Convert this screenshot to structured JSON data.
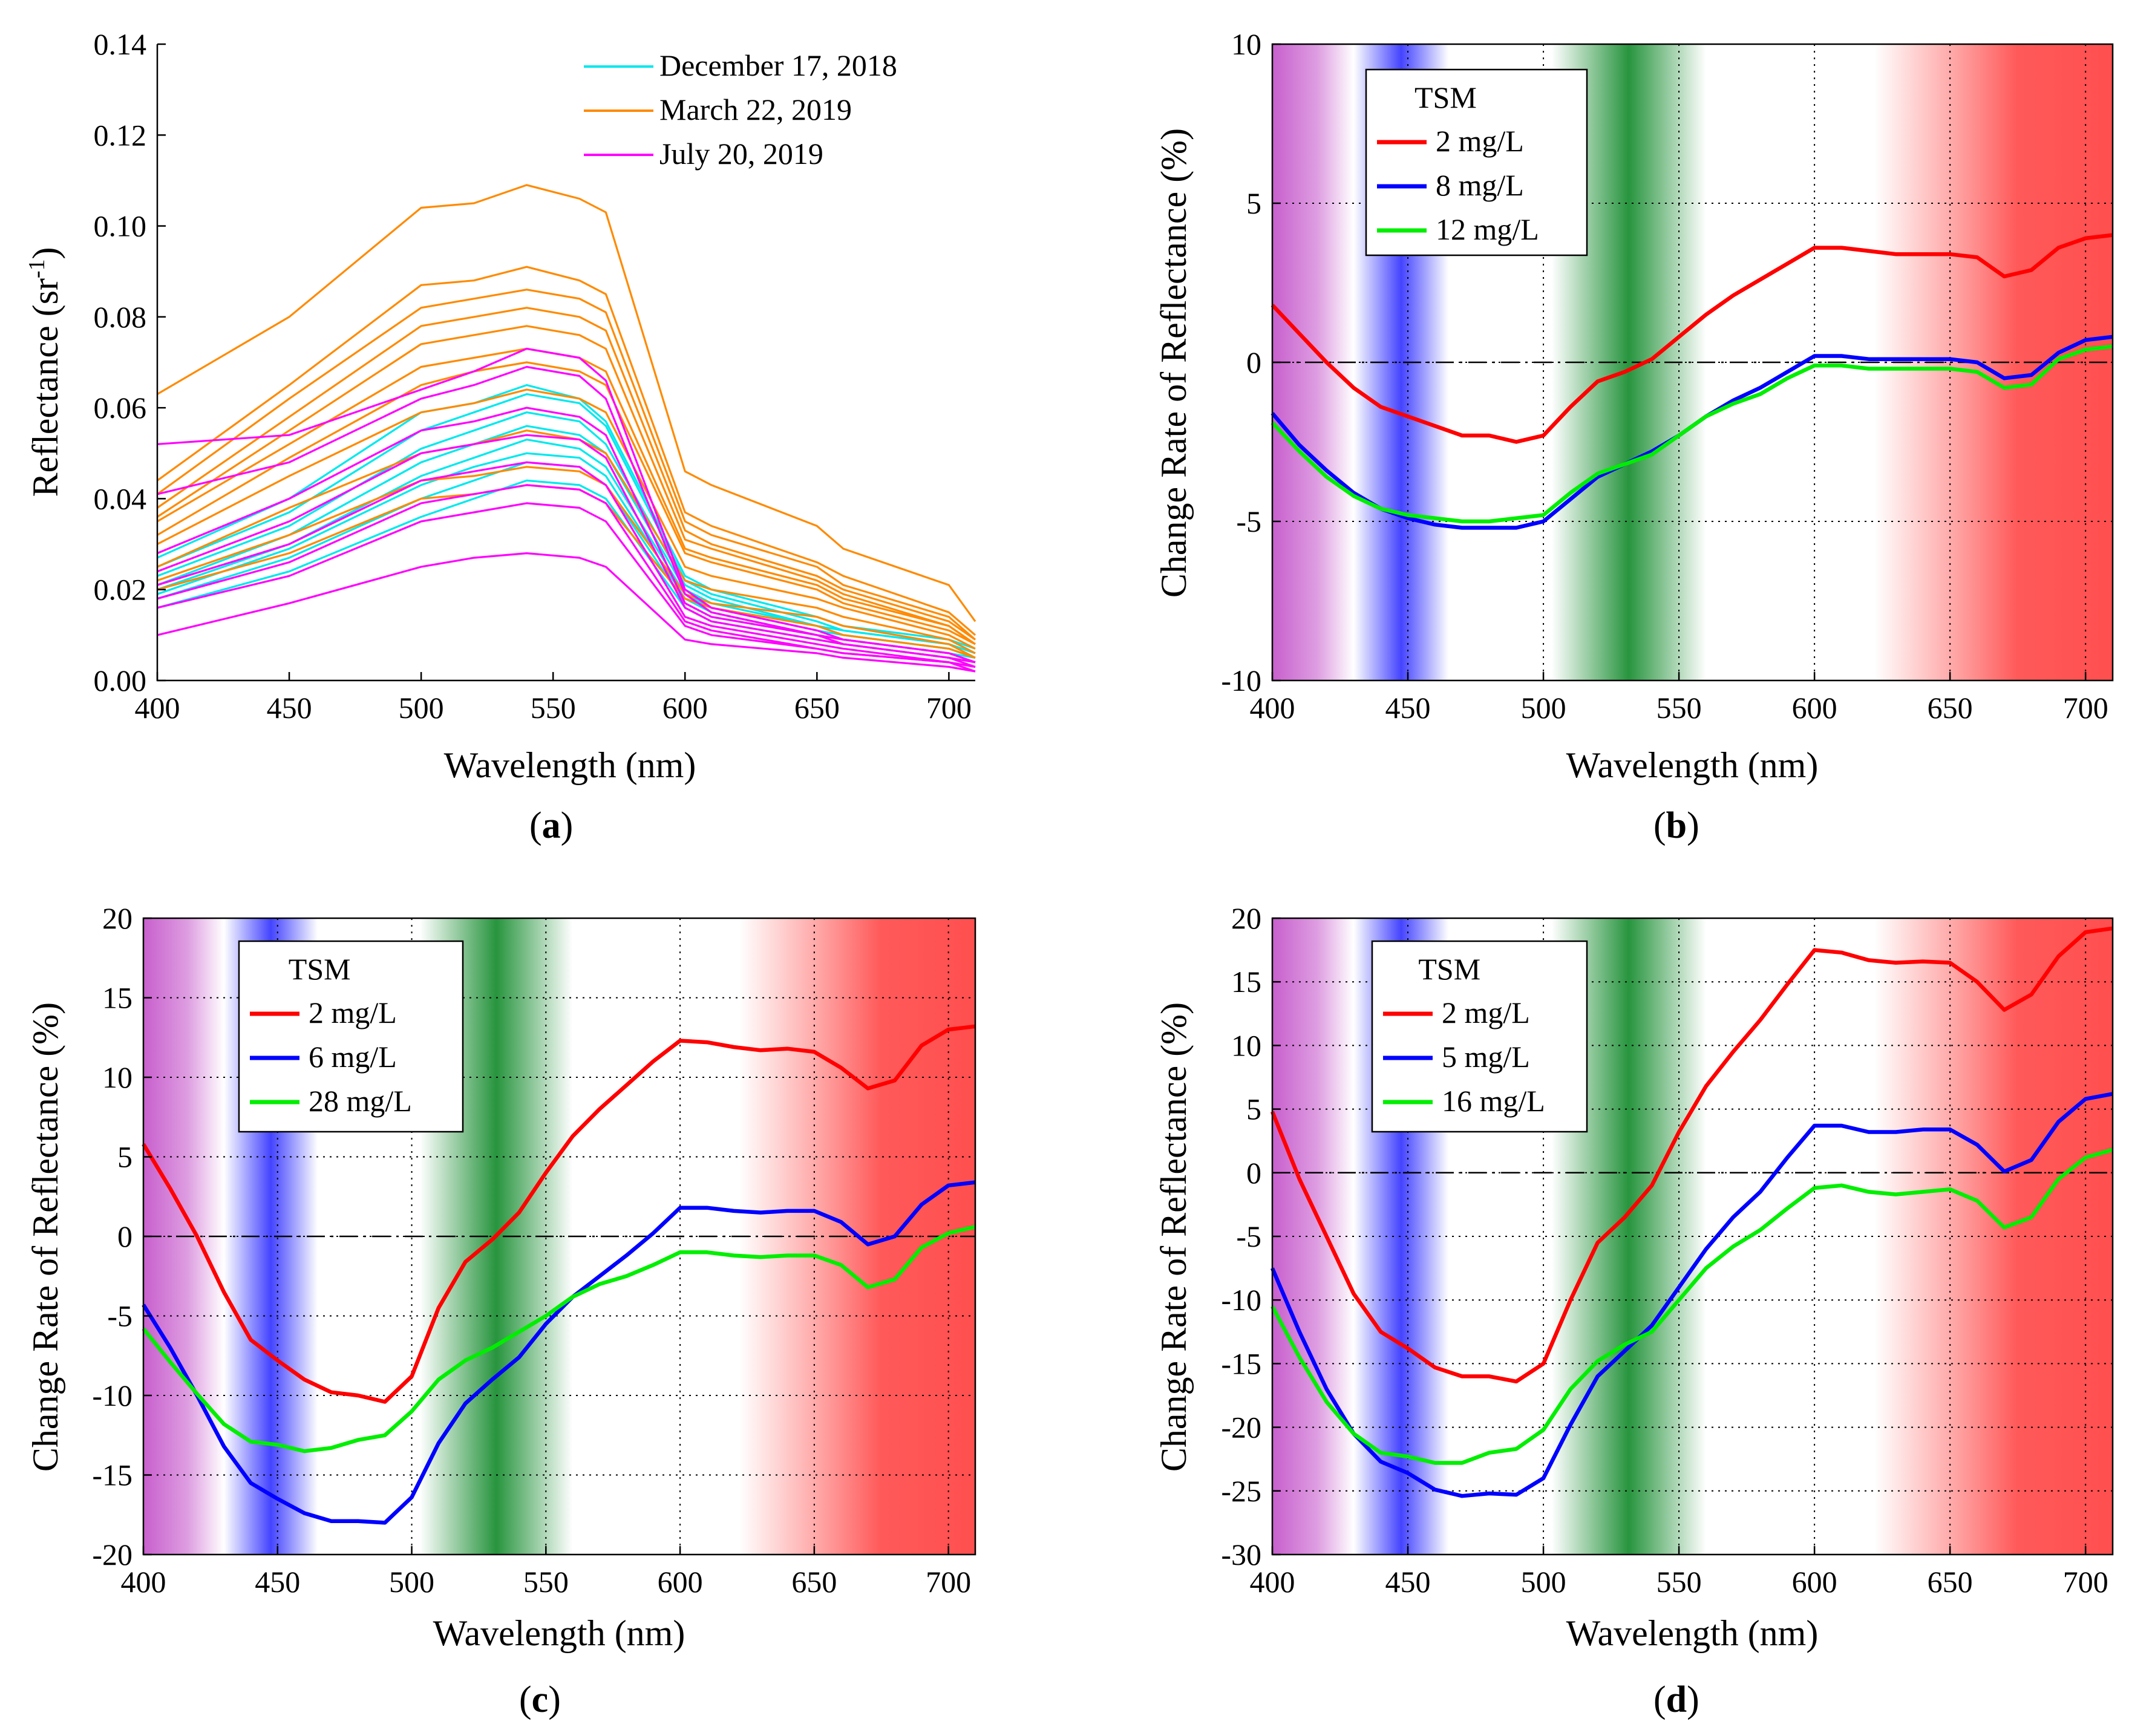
{
  "chart_data": [
    {
      "id": "a",
      "type": "line",
      "panel_label": "a",
      "xlabel": "Wavelength (nm)",
      "ylabel": "Reflectance (sr",
      "ylabel_sup": "-1",
      "ylabel_tail": ")",
      "xlim": [
        400,
        710
      ],
      "ylim": [
        0,
        0.14
      ],
      "xticks": [
        400,
        450,
        500,
        550,
        600,
        650,
        700
      ],
      "yticks": [
        0.0,
        0.02,
        0.04,
        0.06,
        0.08,
        0.1,
        0.12,
        0.14
      ],
      "ytick_labels": [
        "0.00",
        "0.02",
        "0.04",
        "0.06",
        "0.08",
        "0.10",
        "0.12",
        "0.14"
      ],
      "grid": false,
      "x": [
        400,
        450,
        500,
        520,
        540,
        560,
        570,
        600,
        610,
        650,
        660,
        700,
        710
      ],
      "legend": [
        {
          "label": "December 17, 2018",
          "color": "#00e8ee"
        },
        {
          "label": "March 22, 2019",
          "color": "#ff8a00"
        },
        {
          "label": "July 20, 2019",
          "color": "#ff00ff"
        }
      ],
      "groups": [
        {
          "name": "December 17, 2018",
          "color": "#00e8ee",
          "curves": [
            [
              0.016,
              0.024,
              0.036,
              0.04,
              0.044,
              0.043,
              0.04,
              0.016,
              0.013,
              0.009,
              0.008,
              0.005,
              0.004
            ],
            [
              0.018,
              0.027,
              0.04,
              0.044,
              0.048,
              0.047,
              0.043,
              0.017,
              0.014,
              0.01,
              0.009,
              0.006,
              0.004
            ],
            [
              0.019,
              0.029,
              0.043,
              0.047,
              0.05,
              0.049,
              0.045,
              0.018,
              0.015,
              0.01,
              0.009,
              0.006,
              0.005
            ],
            [
              0.02,
              0.03,
              0.045,
              0.049,
              0.053,
              0.051,
              0.047,
              0.019,
              0.016,
              0.011,
              0.01,
              0.007,
              0.005
            ],
            [
              0.021,
              0.032,
              0.048,
              0.052,
              0.056,
              0.054,
              0.05,
              0.02,
              0.017,
              0.012,
              0.01,
              0.007,
              0.005
            ],
            [
              0.023,
              0.034,
              0.051,
              0.055,
              0.059,
              0.057,
              0.052,
              0.021,
              0.018,
              0.012,
              0.011,
              0.008,
              0.006
            ],
            [
              0.025,
              0.037,
              0.055,
              0.059,
              0.063,
              0.061,
              0.056,
              0.022,
              0.019,
              0.013,
              0.011,
              0.008,
              0.006
            ],
            [
              0.027,
              0.04,
              0.059,
              0.061,
              0.065,
              0.062,
              0.057,
              0.023,
              0.02,
              0.014,
              0.012,
              0.009,
              0.007
            ]
          ]
        },
        {
          "name": "March 22, 2019",
          "color": "#ff8a00",
          "curves": [
            [
              0.063,
              0.08,
              0.104,
              0.105,
              0.109,
              0.106,
              0.103,
              0.046,
              0.043,
              0.034,
              0.029,
              0.021,
              0.013
            ],
            [
              0.044,
              0.065,
              0.087,
              0.088,
              0.091,
              0.088,
              0.085,
              0.037,
              0.034,
              0.026,
              0.023,
              0.015,
              0.01
            ],
            [
              0.041,
              0.062,
              0.082,
              0.084,
              0.086,
              0.084,
              0.081,
              0.035,
              0.032,
              0.025,
              0.021,
              0.014,
              0.009
            ],
            [
              0.038,
              0.058,
              0.078,
              0.08,
              0.082,
              0.08,
              0.077,
              0.033,
              0.03,
              0.023,
              0.02,
              0.013,
              0.009
            ],
            [
              0.036,
              0.055,
              0.074,
              0.076,
              0.078,
              0.076,
              0.073,
              0.031,
              0.029,
              0.022,
              0.019,
              0.012,
              0.008
            ],
            [
              0.035,
              0.052,
              0.069,
              0.071,
              0.073,
              0.071,
              0.068,
              0.029,
              0.027,
              0.021,
              0.018,
              0.012,
              0.008
            ],
            [
              0.032,
              0.049,
              0.065,
              0.068,
              0.07,
              0.068,
              0.065,
              0.028,
              0.026,
              0.02,
              0.017,
              0.011,
              0.008
            ],
            [
              0.03,
              0.045,
              0.059,
              0.061,
              0.064,
              0.062,
              0.059,
              0.025,
              0.023,
              0.018,
              0.016,
              0.01,
              0.007
            ],
            [
              0.025,
              0.038,
              0.05,
              0.052,
              0.055,
              0.053,
              0.05,
              0.022,
              0.02,
              0.016,
              0.014,
              0.009,
              0.006
            ],
            [
              0.022,
              0.032,
              0.044,
              0.045,
              0.047,
              0.046,
              0.043,
              0.019,
              0.017,
              0.014,
              0.012,
              0.008,
              0.005
            ],
            [
              0.02,
              0.028,
              0.04,
              0.041,
              0.043,
              0.042,
              0.039,
              0.018,
              0.016,
              0.012,
              0.01,
              0.007,
              0.005
            ]
          ]
        },
        {
          "name": "July 20, 2019",
          "color": "#ff00ff",
          "curves": [
            [
              0.052,
              0.054,
              0.064,
              0.068,
              0.073,
              0.071,
              0.066,
              0.02,
              0.016,
              0.011,
              0.009,
              0.006,
              0.004
            ],
            [
              0.041,
              0.048,
              0.062,
              0.065,
              0.069,
              0.067,
              0.062,
              0.019,
              0.015,
              0.01,
              0.009,
              0.006,
              0.004
            ],
            [
              0.028,
              0.04,
              0.055,
              0.057,
              0.06,
              0.058,
              0.054,
              0.017,
              0.014,
              0.01,
              0.008,
              0.005,
              0.004
            ],
            [
              0.024,
              0.035,
              0.05,
              0.052,
              0.054,
              0.053,
              0.049,
              0.016,
              0.013,
              0.009,
              0.008,
              0.005,
              0.003
            ],
            [
              0.021,
              0.03,
              0.044,
              0.046,
              0.048,
              0.047,
              0.043,
              0.014,
              0.012,
              0.008,
              0.007,
              0.004,
              0.003
            ],
            [
              0.018,
              0.026,
              0.039,
              0.041,
              0.043,
              0.042,
              0.039,
              0.013,
              0.011,
              0.007,
              0.006,
              0.004,
              0.003
            ],
            [
              0.016,
              0.023,
              0.035,
              0.037,
              0.039,
              0.038,
              0.035,
              0.012,
              0.01,
              0.007,
              0.006,
              0.004,
              0.002
            ],
            [
              0.01,
              0.017,
              0.025,
              0.027,
              0.028,
              0.027,
              0.025,
              0.009,
              0.008,
              0.006,
              0.005,
              0.003,
              0.002
            ]
          ]
        }
      ]
    },
    {
      "id": "b",
      "type": "line",
      "panel_label": "b",
      "xlabel": "Wavelength (nm)",
      "ylabel": "Change Rate of Reflectance (%)",
      "xlim": [
        400,
        710
      ],
      "ylim": [
        -10,
        10
      ],
      "xticks": [
        400,
        450,
        500,
        550,
        600,
        650,
        700
      ],
      "yticks": [
        -10,
        -5,
        0,
        5,
        10
      ],
      "grid": true,
      "zero_line": true,
      "legend_title": "TSM",
      "x": [
        400,
        410,
        420,
        430,
        440,
        450,
        460,
        470,
        480,
        490,
        500,
        510,
        520,
        530,
        540,
        550,
        560,
        570,
        580,
        590,
        600,
        610,
        620,
        630,
        640,
        650,
        660,
        670,
        680,
        690,
        700,
        710
      ],
      "series": [
        {
          "name": "2 mg/L",
          "color": "#ff0000",
          "values": [
            1.8,
            0.9,
            0.0,
            -0.8,
            -1.4,
            -1.7,
            -2.0,
            -2.3,
            -2.3,
            -2.5,
            -2.3,
            -1.4,
            -0.6,
            -0.3,
            0.1,
            0.8,
            1.5,
            2.1,
            2.6,
            3.1,
            3.6,
            3.6,
            3.5,
            3.4,
            3.4,
            3.4,
            3.3,
            2.7,
            2.9,
            3.6,
            3.9,
            4.0
          ]
        },
        {
          "name": "8 mg/L",
          "color": "#0000ff",
          "values": [
            -1.6,
            -2.6,
            -3.4,
            -4.1,
            -4.6,
            -4.9,
            -5.1,
            -5.2,
            -5.2,
            -5.2,
            -5.0,
            -4.3,
            -3.6,
            -3.2,
            -2.8,
            -2.3,
            -1.7,
            -1.2,
            -0.8,
            -0.3,
            0.2,
            0.2,
            0.1,
            0.1,
            0.1,
            0.1,
            0.0,
            -0.5,
            -0.4,
            0.3,
            0.7,
            0.8
          ]
        },
        {
          "name": "12 mg/L",
          "color": "#00ee00",
          "values": [
            -1.9,
            -2.8,
            -3.6,
            -4.2,
            -4.6,
            -4.8,
            -4.9,
            -5.0,
            -5.0,
            -4.9,
            -4.8,
            -4.1,
            -3.5,
            -3.2,
            -2.9,
            -2.3,
            -1.7,
            -1.3,
            -1.0,
            -0.5,
            -0.1,
            -0.1,
            -0.2,
            -0.2,
            -0.2,
            -0.2,
            -0.3,
            -0.8,
            -0.7,
            0.1,
            0.4,
            0.5
          ]
        }
      ]
    },
    {
      "id": "c",
      "type": "line",
      "panel_label": "c",
      "xlabel": "Wavelength (nm)",
      "ylabel": "Change Rate of Reflectance (%)",
      "xlim": [
        400,
        710
      ],
      "ylim": [
        -20,
        20
      ],
      "xticks": [
        400,
        450,
        500,
        550,
        600,
        650,
        700
      ],
      "yticks": [
        -20,
        -15,
        -10,
        -5,
        0,
        5,
        10,
        15,
        20
      ],
      "grid": true,
      "zero_line": true,
      "legend_title": "TSM",
      "x": [
        400,
        410,
        420,
        430,
        440,
        450,
        460,
        470,
        480,
        490,
        500,
        510,
        520,
        530,
        540,
        550,
        560,
        570,
        580,
        590,
        600,
        610,
        620,
        630,
        640,
        650,
        660,
        670,
        680,
        690,
        700,
        710
      ],
      "series": [
        {
          "name": "2 mg/L",
          "color": "#ff0000",
          "values": [
            5.8,
            3.0,
            0.0,
            -3.5,
            -6.5,
            -7.8,
            -9.0,
            -9.8,
            -10.0,
            -10.4,
            -8.8,
            -4.5,
            -1.6,
            -0.2,
            1.5,
            4.0,
            6.3,
            8.0,
            9.5,
            11.0,
            12.3,
            12.2,
            11.9,
            11.7,
            11.8,
            11.6,
            10.6,
            9.3,
            9.8,
            12.0,
            13.0,
            13.2
          ]
        },
        {
          "name": "6 mg/L",
          "color": "#0000ff",
          "values": [
            -4.3,
            -7.0,
            -10.0,
            -13.2,
            -15.5,
            -16.5,
            -17.4,
            -17.9,
            -17.9,
            -18.0,
            -16.4,
            -13.0,
            -10.5,
            -9.0,
            -7.6,
            -5.5,
            -3.8,
            -2.5,
            -1.2,
            0.2,
            1.8,
            1.8,
            1.6,
            1.5,
            1.6,
            1.6,
            0.9,
            -0.5,
            0.0,
            2.0,
            3.2,
            3.4
          ]
        },
        {
          "name": "28 mg/L",
          "color": "#00ee00",
          "values": [
            -5.8,
            -7.9,
            -9.9,
            -11.8,
            -12.9,
            -13.1,
            -13.5,
            -13.3,
            -12.8,
            -12.5,
            -11.0,
            -9.0,
            -7.8,
            -7.0,
            -6.0,
            -5.0,
            -3.8,
            -3.0,
            -2.5,
            -1.8,
            -1.0,
            -1.0,
            -1.2,
            -1.3,
            -1.2,
            -1.2,
            -1.8,
            -3.2,
            -2.7,
            -0.7,
            0.2,
            0.6
          ]
        }
      ]
    },
    {
      "id": "d",
      "type": "line",
      "panel_label": "d",
      "xlabel": "Wavelength (nm)",
      "ylabel": "Change Rate of Reflectance (%)",
      "xlim": [
        400,
        710
      ],
      "ylim": [
        -30,
        20
      ],
      "xticks": [
        400,
        450,
        500,
        550,
        600,
        650,
        700
      ],
      "yticks": [
        -30,
        -25,
        -20,
        -15,
        -10,
        -5,
        0,
        5,
        10,
        15,
        20
      ],
      "grid": true,
      "zero_line": true,
      "legend_title": "TSM",
      "x": [
        400,
        410,
        420,
        430,
        440,
        450,
        460,
        470,
        480,
        490,
        500,
        510,
        520,
        530,
        540,
        550,
        560,
        570,
        580,
        590,
        600,
        610,
        620,
        630,
        640,
        650,
        660,
        670,
        680,
        690,
        700,
        710
      ],
      "series": [
        {
          "name": "2 mg/L",
          "color": "#ff0000",
          "values": [
            4.8,
            -0.5,
            -5.0,
            -9.5,
            -12.5,
            -13.8,
            -15.3,
            -16.0,
            -16.0,
            -16.4,
            -15.0,
            -10.0,
            -5.5,
            -3.5,
            -1.0,
            3.2,
            6.8,
            9.5,
            12.0,
            14.8,
            17.5,
            17.3,
            16.7,
            16.5,
            16.6,
            16.5,
            15.0,
            12.8,
            14.0,
            17.0,
            18.9,
            19.2
          ]
        },
        {
          "name": "5 mg/L",
          "color": "#0000ff",
          "values": [
            -7.5,
            -12.5,
            -17.0,
            -20.5,
            -22.7,
            -23.6,
            -24.9,
            -25.4,
            -25.2,
            -25.3,
            -24.0,
            -19.8,
            -16.0,
            -14.0,
            -12.0,
            -9.0,
            -6.0,
            -3.5,
            -1.5,
            1.2,
            3.7,
            3.7,
            3.2,
            3.2,
            3.4,
            3.4,
            2.2,
            0.1,
            1.0,
            4.0,
            5.8,
            6.2
          ]
        },
        {
          "name": "16 mg/L",
          "color": "#00ee00",
          "values": [
            -10.5,
            -14.5,
            -18.0,
            -20.5,
            -22.0,
            -22.3,
            -22.8,
            -22.8,
            -22.0,
            -21.7,
            -20.2,
            -17.0,
            -14.8,
            -13.5,
            -12.5,
            -10.0,
            -7.5,
            -5.8,
            -4.5,
            -2.8,
            -1.2,
            -1.0,
            -1.5,
            -1.7,
            -1.5,
            -1.3,
            -2.2,
            -4.3,
            -3.5,
            -0.5,
            1.2,
            1.8
          ]
        }
      ]
    }
  ]
}
